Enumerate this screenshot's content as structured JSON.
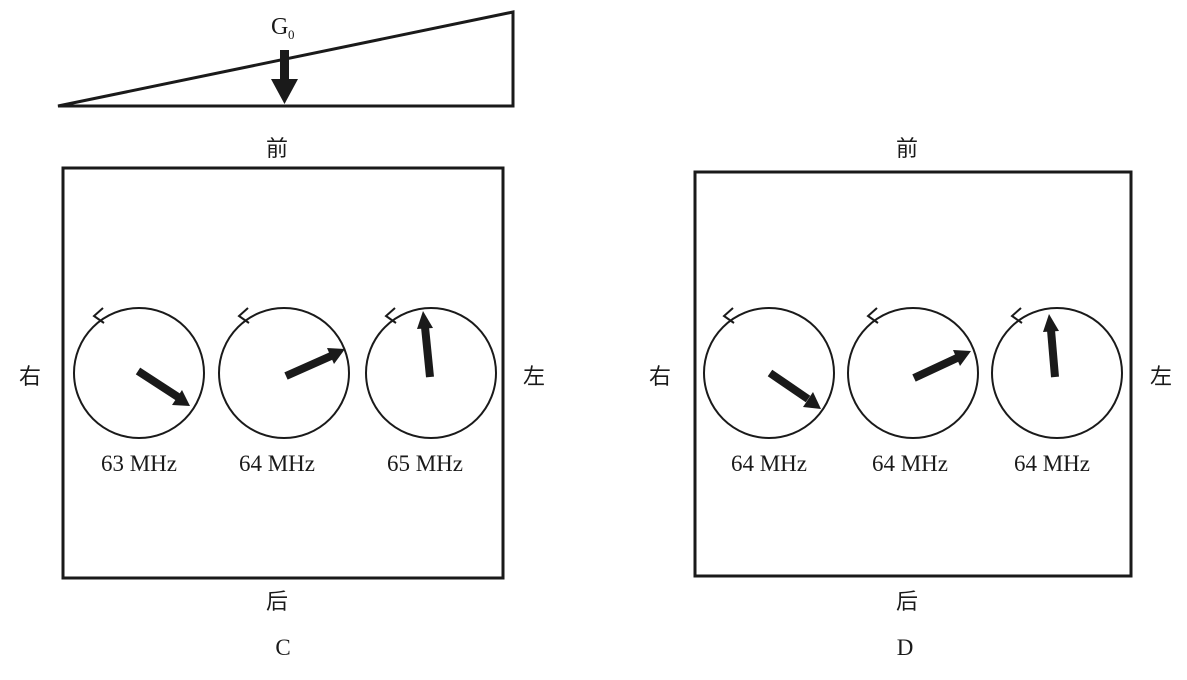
{
  "gradient": {
    "label": "G",
    "subscript": "0"
  },
  "panels": [
    {
      "id": "C",
      "caption": "C",
      "labels": {
        "front": "前",
        "back": "后",
        "right": "右",
        "left": "左"
      },
      "spins": [
        {
          "frequency": "63 MHz",
          "direction": "lower-right"
        },
        {
          "frequency": "64 MHz",
          "direction": "upper-right"
        },
        {
          "frequency": "65 MHz",
          "direction": "up"
        }
      ]
    },
    {
      "id": "D",
      "caption": "D",
      "labels": {
        "front": "前",
        "back": "后",
        "right": "右",
        "left": "左"
      },
      "spins": [
        {
          "frequency": "64 MHz",
          "direction": "lower-right"
        },
        {
          "frequency": "64 MHz",
          "direction": "upper-right"
        },
        {
          "frequency": "64 MHz",
          "direction": "up"
        }
      ]
    }
  ],
  "icons": [
    "arrow-down-icon",
    "rotation-arrow-icon",
    "magnetization-arrow-icon"
  ],
  "colors": {
    "ink": "#1a1a1a",
    "background": "#ffffff"
  }
}
